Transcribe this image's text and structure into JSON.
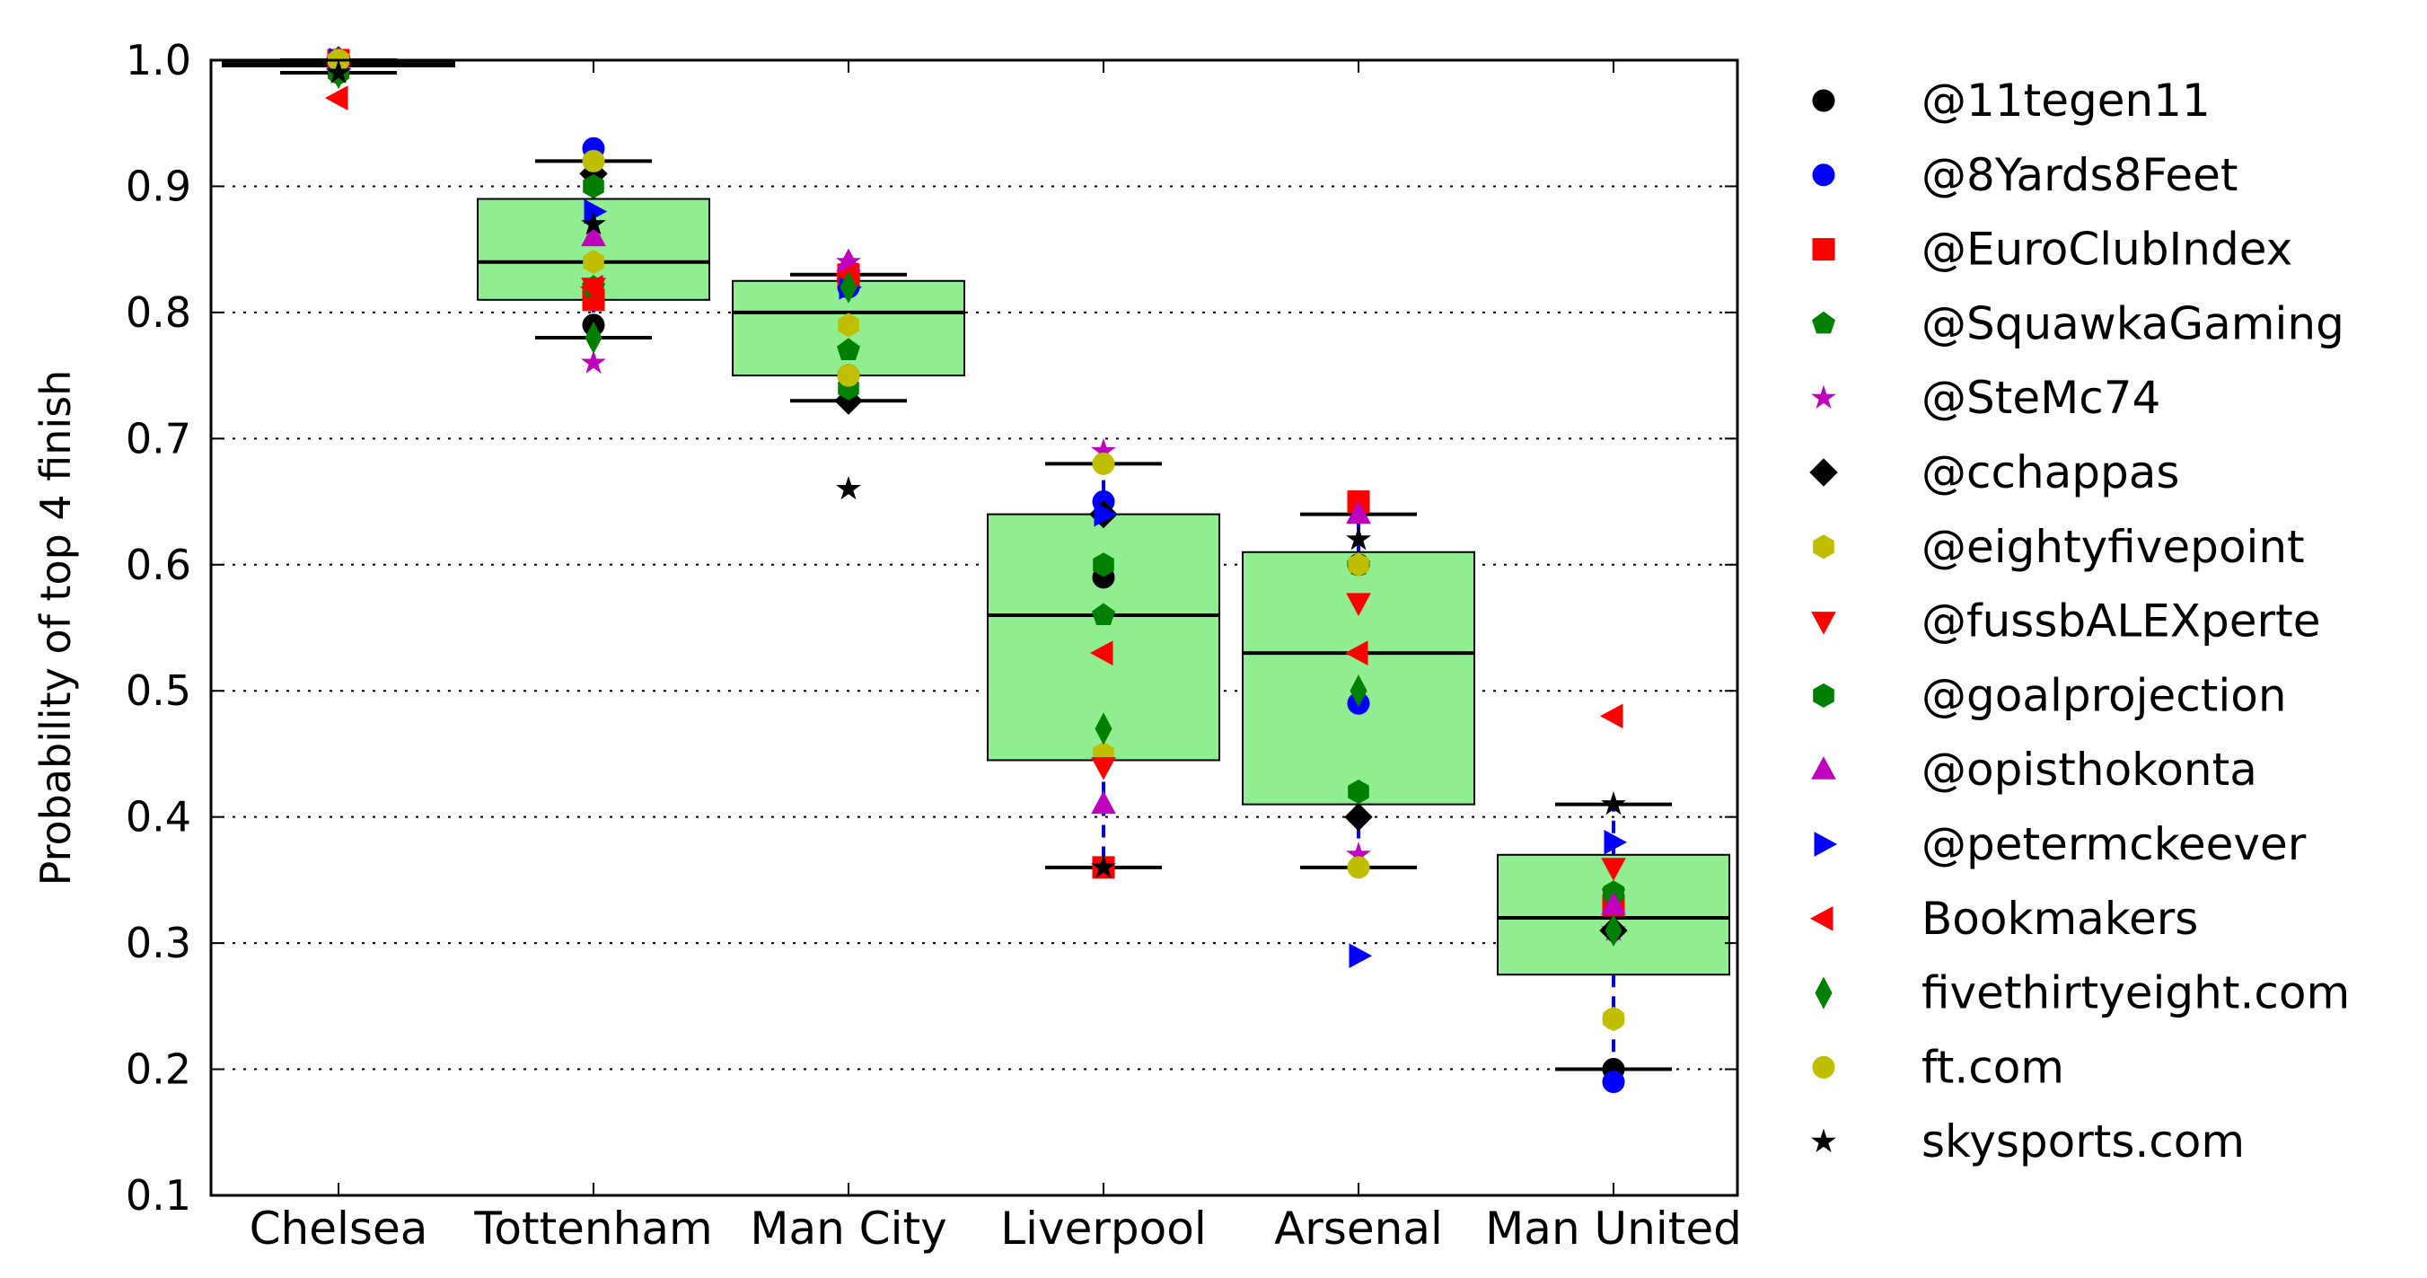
{
  "chart_data": {
    "type": "box",
    "title": "",
    "xlabel": "",
    "ylabel": "Probability of top 4 finish",
    "ylim": [
      0.1,
      1.0
    ],
    "yticks": [
      "0.1",
      "0.2",
      "0.3",
      "0.4",
      "0.5",
      "0.6",
      "0.7",
      "0.8",
      "0.9",
      "1.0"
    ],
    "grid": "horizontal dotted",
    "legend_position": "right, outside plot",
    "box_color": "#90ee90",
    "categories": [
      "Chelsea",
      "Tottenham",
      "Man City",
      "Liverpool",
      "Arsenal",
      "Man United"
    ],
    "boxes": [
      {
        "team": "Chelsea",
        "whisker_low": 0.99,
        "q1": 0.995,
        "median": 0.997,
        "q3": 0.999,
        "whisker_high": 1.0
      },
      {
        "team": "Tottenham",
        "whisker_low": 0.78,
        "q1": 0.81,
        "median": 0.84,
        "q3": 0.89,
        "whisker_high": 0.92
      },
      {
        "team": "Man City",
        "whisker_low": 0.73,
        "q1": 0.75,
        "median": 0.8,
        "q3": 0.825,
        "whisker_high": 0.83
      },
      {
        "team": "Liverpool",
        "whisker_low": 0.36,
        "q1": 0.445,
        "median": 0.56,
        "q3": 0.64,
        "whisker_high": 0.68
      },
      {
        "team": "Arsenal",
        "whisker_low": 0.36,
        "q1": 0.41,
        "median": 0.53,
        "q3": 0.61,
        "whisker_high": 0.64
      },
      {
        "team": "Man United",
        "whisker_low": 0.2,
        "q1": 0.275,
        "median": 0.32,
        "q3": 0.37,
        "whisker_high": 0.41
      }
    ],
    "series": [
      {
        "name": "@11tegen11",
        "marker": "circle",
        "color": "#000000",
        "values": [
          0.99,
          0.79,
          0.75,
          0.59,
          0.6,
          0.2
        ]
      },
      {
        "name": "@8Yards8Feet",
        "marker": "circle",
        "color": "#0000ff",
        "values": [
          1.0,
          0.93,
          0.82,
          0.65,
          0.49,
          0.19
        ]
      },
      {
        "name": "@EuroClubIndex",
        "marker": "square",
        "color": "#ff0000",
        "values": [
          1.0,
          0.81,
          0.83,
          0.36,
          0.65,
          0.33
        ]
      },
      {
        "name": "@SquawkaGaming",
        "marker": "pentagon",
        "color": "#008000",
        "values": [
          0.99,
          0.82,
          0.77,
          0.56,
          0.6,
          0.34
        ]
      },
      {
        "name": "@SteMc74",
        "marker": "star",
        "color": "#bf00bf",
        "values": [
          1.0,
          0.76,
          0.84,
          0.69,
          0.37,
          0.31
        ]
      },
      {
        "name": "@cchappas",
        "marker": "diamond",
        "color": "#000000",
        "values": [
          1.0,
          0.91,
          0.73,
          0.64,
          0.4,
          0.31
        ]
      },
      {
        "name": "@eightyfivepoint",
        "marker": "hexagon",
        "color": "#bfbf00",
        "values": [
          1.0,
          0.84,
          0.79,
          0.45,
          0.6,
          0.24
        ]
      },
      {
        "name": "@fussbALEXperte",
        "marker": "triangle-down",
        "color": "#ff0000",
        "values": [
          0.99,
          0.82,
          0.82,
          0.44,
          0.57,
          0.36
        ]
      },
      {
        "name": "@goalprojection",
        "marker": "hexagon",
        "color": "#008000",
        "values": [
          0.99,
          0.9,
          0.74,
          0.6,
          0.42,
          0.34
        ]
      },
      {
        "name": "@opisthokonta",
        "marker": "triangle-up",
        "color": "#bf00bf",
        "values": [
          1.0,
          0.86,
          0.84,
          0.41,
          0.64,
          0.33
        ]
      },
      {
        "name": "@petermckeever",
        "marker": "triangle-right",
        "color": "#0000ff",
        "values": [
          1.0,
          0.88,
          0.82,
          0.64,
          0.29,
          0.38
        ]
      },
      {
        "name": "Bookmakers",
        "marker": "triangle-left",
        "color": "#ff0000",
        "values": [
          0.97,
          0.82,
          0.83,
          0.53,
          0.53,
          0.48
        ]
      },
      {
        "name": "fivethirtyeight.com",
        "marker": "thin-diamond",
        "color": "#008000",
        "values": [
          0.99,
          0.78,
          0.82,
          0.47,
          0.5,
          0.31
        ]
      },
      {
        "name": "ft.com",
        "marker": "circle",
        "color": "#bfbf00",
        "values": [
          1.0,
          0.92,
          0.75,
          0.68,
          0.36,
          0.24
        ]
      },
      {
        "name": "skysports.com",
        "marker": "star",
        "color": "#000000",
        "values": [
          0.99,
          0.87,
          0.66,
          0.36,
          0.62,
          0.41
        ]
      }
    ]
  }
}
